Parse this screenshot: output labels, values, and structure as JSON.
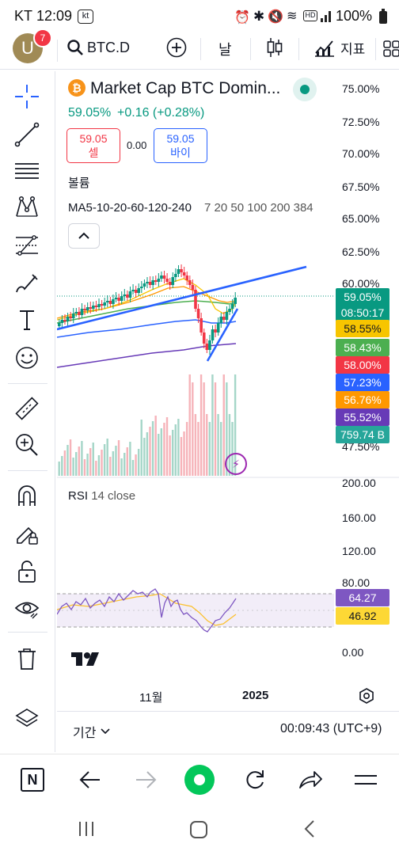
{
  "status": {
    "carrier": "KT",
    "time": "12:09",
    "kt_badge": "kt",
    "battery": "100%"
  },
  "topbar": {
    "avatar_letter": "U",
    "notifications": "7",
    "symbol": "BTC.D",
    "interval": "날",
    "indicators": "지표"
  },
  "chart": {
    "title": "Market Cap BTC Domin...",
    "price_line": "59.05%",
    "change": "+0.16 (+0.28%)",
    "sell_price": "59.05",
    "sell_label": "셀",
    "spread": "0.00",
    "buy_price": "59.05",
    "buy_label": "바이",
    "volume_label": "볼륨",
    "ma_label": "MA5-10-20-60-120-240",
    "ma_values": "7 20 50 100 200 384",
    "rsi_label": "RSI",
    "rsi_params": "14 close",
    "x_labels": [
      "11월",
      "2025"
    ],
    "range_label": "기간",
    "clock": "00:09:43 (UTC+9)"
  },
  "price_axis": [
    "75.00%",
    "72.50%",
    "70.00%",
    "67.50%",
    "65.00%",
    "62.50%",
    "60.00%",
    "47.50%"
  ],
  "rsi_axis": [
    "200.00",
    "160.00",
    "120.00",
    "80.00",
    "0.00"
  ],
  "tags": [
    {
      "text": "59.05%",
      "color": "#089981"
    },
    {
      "text": "08:50:17",
      "color": "#089981"
    },
    {
      "text": "58.55%",
      "color": "#f7c500"
    },
    {
      "text": "58.43%",
      "color": "#4caf50"
    },
    {
      "text": "58.00%",
      "color": "#f23645"
    },
    {
      "text": "57.23%",
      "color": "#2962ff"
    },
    {
      "text": "56.76%",
      "color": "#ff9800"
    },
    {
      "text": "55.52%",
      "color": "#673ab7"
    },
    {
      "text": "759.74 B",
      "color": "#26a69a"
    },
    {
      "text": "64.27",
      "color": "#7e57c2"
    },
    {
      "text": "46.92",
      "color": "#fdd835"
    }
  ]
}
